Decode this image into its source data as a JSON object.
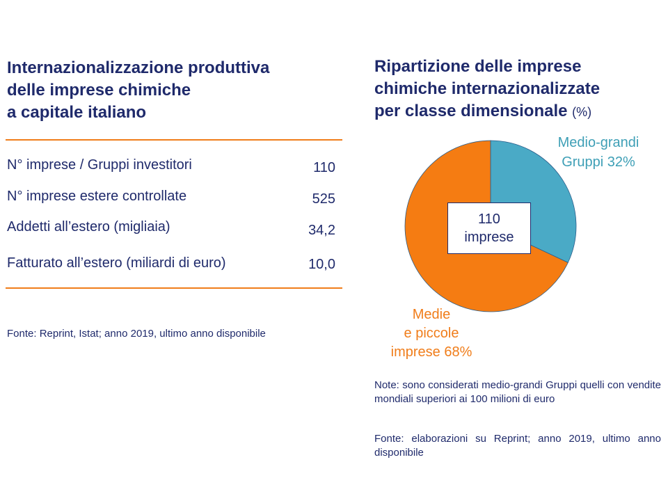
{
  "left_panel": {
    "title_lines": [
      "Internazionalizzazione produttiva",
      "delle imprese chimiche",
      "a capitale italiano"
    ],
    "stats": [
      {
        "label": "N° imprese / Gruppi investitori",
        "value": "110"
      },
      {
        "label": "N° imprese estere controllate",
        "value": "525"
      },
      {
        "label": "Addetti all’estero (migliaia)",
        "value": "34,2"
      },
      {
        "label": "Fatturato all’estero (miliardi di euro)",
        "value": "10,0"
      }
    ],
    "source": "Fonte: Reprint, Istat; anno 2019, ultimo anno disponibile"
  },
  "right_panel": {
    "title_lines": [
      "Ripartizione delle imprese",
      "chimiche internazionalizzate",
      "per classe dimensionale"
    ],
    "title_unit": "(%)",
    "center_label": {
      "line1": "110",
      "line2": "imprese"
    },
    "slice_labels": {
      "medio_grandi": {
        "line1": "Medio-grandi",
        "line2": "Gruppi 32%"
      },
      "medie_piccole": {
        "line1": "Medie",
        "line2": "e piccole",
        "line3": "imprese 68%"
      }
    },
    "note": "Note: sono considerati medio-grandi Gruppi quelli con vendite mondiali superiori ai 100 milioni di euro",
    "source": "Fonte: elaborazioni su Reprint; anno 2019, ultimo anno disponibile"
  },
  "chart_data": {
    "type": "pie",
    "title": "Ripartizione delle imprese chimiche internazionalizzate per classe dimensionale (%)",
    "categories": [
      "Medio-grandi Gruppi",
      "Medie e piccole imprese"
    ],
    "values": [
      32,
      68
    ],
    "colors": [
      "#4aaac6",
      "#f57c12"
    ],
    "center_text": "110 imprese"
  },
  "colors": {
    "text_navy": "#1f2a6b",
    "accent_orange": "#f07d1a",
    "teal_label": "#3e9fb6"
  }
}
